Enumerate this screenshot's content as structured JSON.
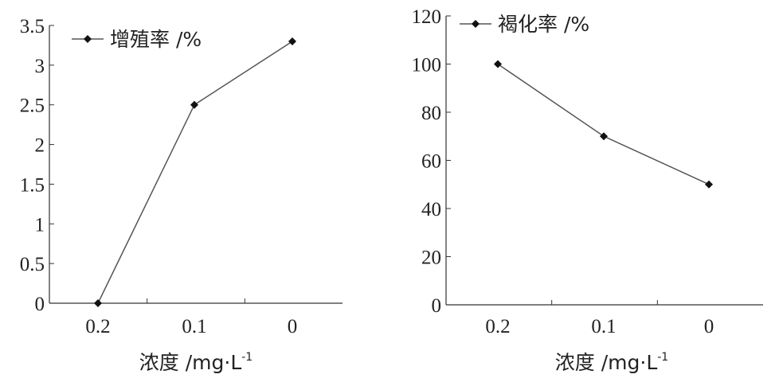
{
  "chart_data": [
    {
      "type": "line",
      "categories": [
        "0.2",
        "0.1",
        "0"
      ],
      "series": [
        {
          "name": "增殖率 /%",
          "values": [
            0,
            2.5,
            3.3
          ]
        }
      ],
      "yticks": [
        "0",
        "0.5",
        "1",
        "1.5",
        "2",
        "2.5",
        "3",
        "3.5"
      ],
      "ylim": [
        0,
        3.5
      ],
      "xlabel": "浓度 /mg·L",
      "xlabel_sup": "-1",
      "grid": false,
      "legend": "top-left"
    },
    {
      "type": "line",
      "categories": [
        "0.2",
        "0.1",
        "0"
      ],
      "series": [
        {
          "name": "褐化率 /%",
          "values": [
            100,
            70,
            50
          ]
        }
      ],
      "yticks": [
        "0",
        "20",
        "40",
        "60",
        "80",
        "100",
        "120"
      ],
      "ylim": [
        0,
        120
      ],
      "xlabel": "浓度 /mg·L",
      "xlabel_sup": "-1",
      "grid": false,
      "legend": "top-left"
    }
  ]
}
